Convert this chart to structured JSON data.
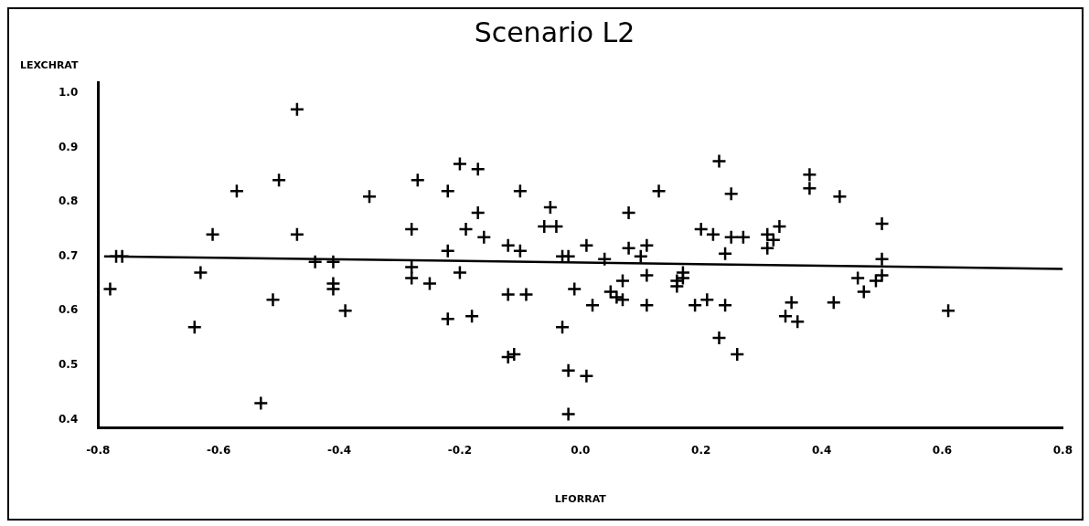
{
  "chart_data": {
    "type": "scatter",
    "title": "Scenario L2",
    "xlabel": "LFORRAT",
    "ylabel": "LEXCHRAT",
    "xlim": [
      -0.8,
      0.8
    ],
    "xticks": [
      -0.8,
      -0.6,
      -0.4,
      -0.2,
      {
        "value": 0,
        "label": "0.0"
      },
      0.2,
      0.4,
      0.6,
      0.8
    ],
    "ylim": [
      0.385,
      1.02
    ],
    "yticks": [
      0.4,
      0.5,
      0.6,
      0.7,
      0.8,
      0.9,
      {
        "value": 1,
        "label": "1.0"
      }
    ],
    "grid": false,
    "legend": false,
    "marker": "cross",
    "series": [
      {
        "color": "#000000",
        "x": [
          -0.78,
          -0.77,
          -0.76,
          -0.64,
          -0.63,
          -0.61,
          -0.57,
          -0.53,
          -0.51,
          -0.5,
          -0.47,
          -0.47,
          -0.44,
          -0.41,
          -0.41,
          -0.41,
          -0.39,
          -0.35,
          -0.28,
          -0.28,
          -0.28,
          -0.27,
          -0.25,
          -0.22,
          -0.22,
          -0.22,
          -0.2,
          -0.19,
          -0.2,
          -0.17,
          -0.17,
          -0.16,
          -0.18,
          -0.12,
          -0.12,
          -0.12,
          -0.11,
          -0.1,
          -0.1,
          -0.09,
          -0.05,
          -0.06,
          -0.04,
          -0.03,
          -0.02,
          -0.03,
          -0.02,
          -0.02,
          -0.01,
          0.01,
          0.01,
          0.02,
          0.04,
          0.05,
          0.06,
          0.07,
          0.07,
          0.08,
          0.08,
          0.1,
          0.11,
          0.11,
          0.11,
          0.13,
          0.16,
          0.16,
          0.17,
          0.17,
          0.19,
          0.2,
          0.21,
          0.22,
          0.23,
          0.23,
          0.24,
          0.24,
          0.25,
          0.25,
          0.26,
          0.27,
          0.31,
          0.31,
          0.32,
          0.33,
          0.34,
          0.35,
          0.36,
          0.38,
          0.38,
          0.42,
          0.43,
          0.46,
          0.47,
          0.49,
          0.5,
          0.5,
          0.5,
          0.61
        ],
        "values": [
          0.64,
          0.7,
          0.7,
          0.57,
          0.67,
          0.74,
          0.82,
          0.43,
          0.62,
          0.84,
          0.97,
          0.74,
          0.69,
          0.69,
          0.65,
          0.64,
          0.6,
          0.81,
          0.75,
          0.68,
          0.66,
          0.84,
          0.65,
          0.82,
          0.71,
          0.585,
          0.87,
          0.75,
          0.67,
          0.86,
          0.78,
          0.735,
          0.59,
          0.72,
          0.63,
          0.515,
          0.52,
          0.82,
          0.71,
          0.63,
          0.79,
          0.755,
          0.755,
          0.7,
          0.7,
          0.57,
          0.49,
          0.41,
          0.64,
          0.48,
          0.72,
          0.61,
          0.695,
          0.635,
          0.625,
          0.655,
          0.62,
          0.78,
          0.715,
          0.7,
          0.665,
          0.72,
          0.61,
          0.82,
          0.645,
          0.655,
          0.67,
          0.66,
          0.61,
          0.75,
          0.62,
          0.74,
          0.875,
          0.55,
          0.705,
          0.61,
          0.815,
          0.735,
          0.52,
          0.735,
          0.74,
          0.715,
          0.73,
          0.755,
          0.59,
          0.615,
          0.58,
          0.85,
          0.825,
          0.615,
          0.81,
          0.66,
          0.635,
          0.655,
          0.76,
          0.695,
          0.665,
          0.6
        ]
      },
      {
        "type": "line",
        "color": "#000000",
        "marker": "none",
        "x": [
          -0.79,
          0.8
        ],
        "values": [
          0.7,
          0.677
        ]
      }
    ]
  }
}
